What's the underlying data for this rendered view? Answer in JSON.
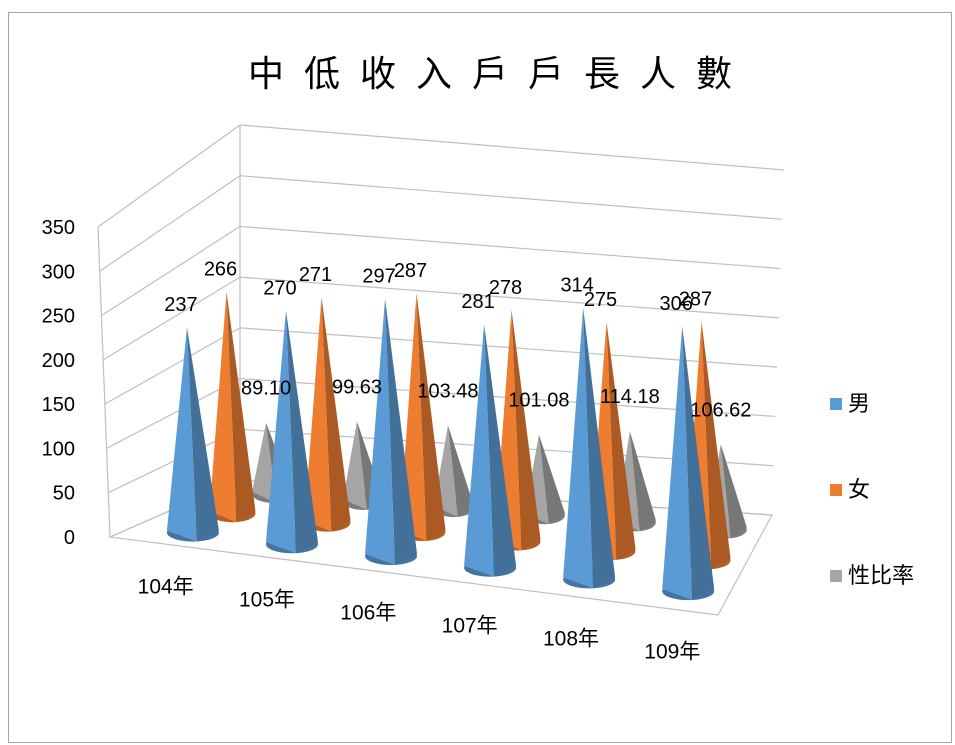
{
  "chart_data": {
    "type": "bar",
    "style": "3d-cone",
    "title": "中低收入戶戶長人數",
    "categories": [
      "104年",
      "105年",
      "106年",
      "107年",
      "108年",
      "109年"
    ],
    "series": [
      {
        "name": "男",
        "color": "#5b9bd5",
        "values": [
          237,
          270,
          297,
          281,
          314,
          306
        ]
      },
      {
        "name": "女",
        "color": "#ed7d31",
        "values": [
          266,
          271,
          287,
          278,
          275,
          287
        ]
      },
      {
        "name": "性比率",
        "color": "#a5a5a5",
        "values": [
          89.1,
          99.63,
          103.48,
          101.08,
          114.18,
          106.62
        ]
      }
    ],
    "data_labels": [
      [
        "237",
        "270",
        "297",
        "281",
        "314",
        "306"
      ],
      [
        "266",
        "271",
        "287",
        "278",
        "275",
        "287"
      ],
      [
        "89.10",
        "99.63",
        "103.48",
        "101.08",
        "114.18",
        "106.62"
      ]
    ],
    "yticks": [
      "0",
      "50",
      "100",
      "150",
      "200",
      "250",
      "300",
      "350"
    ],
    "ylim": [
      0,
      350
    ],
    "grid": true,
    "legend_position": "right"
  }
}
